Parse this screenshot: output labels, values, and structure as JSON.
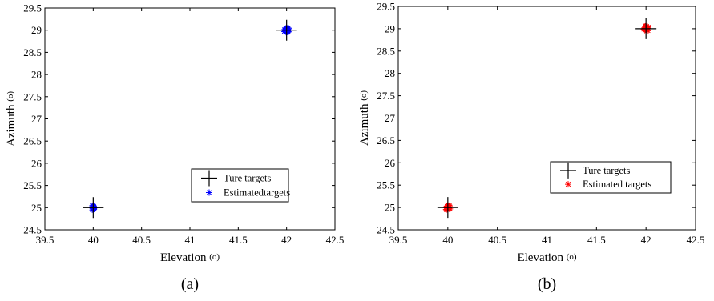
{
  "chart_data": [
    {
      "type": "scatter",
      "panel_label": "(a)",
      "xlabel": "Elevation",
      "ylabel": "Azimuth",
      "unit": "(o)",
      "xlim": [
        39.5,
        42.5
      ],
      "ylim": [
        24.5,
        29.5
      ],
      "xticks": [
        "39.5",
        "40",
        "40.5",
        "41",
        "41.5",
        "42",
        "42.5"
      ],
      "yticks": [
        "24.5",
        "25",
        "25.5",
        "26",
        "26.5",
        "27",
        "27.5",
        "28",
        "28.5",
        "29",
        "29.5"
      ],
      "grid": false,
      "legend_position": "lower-right",
      "series": [
        {
          "name": "Ture targets",
          "marker": "plus",
          "color": "#000000",
          "x": [
            40,
            42
          ],
          "y": [
            25,
            29
          ]
        },
        {
          "name": "Estimatedtargets",
          "marker": "asterisk",
          "color": "#0000ff",
          "x": [
            40,
            42
          ],
          "y": [
            25,
            29
          ]
        }
      ]
    },
    {
      "type": "scatter",
      "panel_label": "(b)",
      "xlabel": "Elevation",
      "ylabel": "Azimuth",
      "unit": "(o)",
      "xlim": [
        39.5,
        42.5
      ],
      "ylim": [
        24.5,
        29.5
      ],
      "xticks": [
        "39.5",
        "40",
        "40.5",
        "41",
        "41.5",
        "42",
        "42.5"
      ],
      "yticks": [
        "24.5",
        "25",
        "25.5",
        "26",
        "26.5",
        "27",
        "27.5",
        "28",
        "28.5",
        "29",
        "29.5"
      ],
      "grid": false,
      "legend_position": "lower-right",
      "series": [
        {
          "name": "Ture targets",
          "marker": "plus",
          "color": "#000000",
          "x": [
            40,
            42
          ],
          "y": [
            25,
            29
          ]
        },
        {
          "name": "Estimated targets",
          "marker": "asterisk",
          "color": "#ff0000",
          "x": [
            40,
            42
          ],
          "y": [
            25,
            29
          ]
        }
      ]
    }
  ]
}
